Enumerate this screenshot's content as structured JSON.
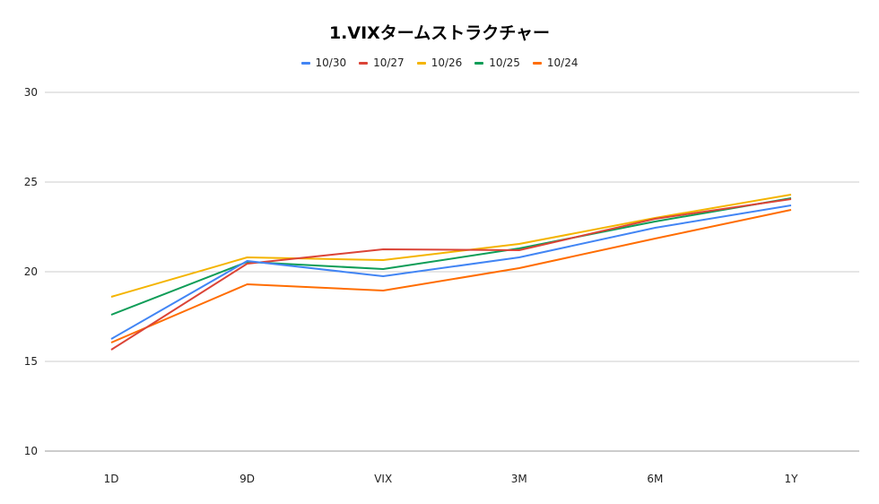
{
  "chart_data": {
    "type": "line",
    "title": "1.VIXタームストラクチャー",
    "categories": [
      "1D",
      "9D",
      "VIX",
      "3M",
      "6M",
      "1Y"
    ],
    "ylim": [
      10,
      30
    ],
    "yticks": [
      10,
      15,
      20,
      25,
      30
    ],
    "grid": true,
    "legend_position": "top",
    "series": [
      {
        "name": "10/30",
        "color": "#4285F4",
        "values": [
          16.25,
          20.6,
          19.75,
          20.8,
          22.45,
          23.7
        ]
      },
      {
        "name": "10/27",
        "color": "#DB4437",
        "values": [
          15.65,
          20.45,
          21.25,
          21.2,
          22.95,
          24.05
        ]
      },
      {
        "name": "10/26",
        "color": "#F4B400",
        "values": [
          18.6,
          20.8,
          20.65,
          21.55,
          23.0,
          24.3
        ]
      },
      {
        "name": "10/25",
        "color": "#0F9D58",
        "values": [
          17.6,
          20.55,
          20.15,
          21.3,
          22.8,
          24.1
        ]
      },
      {
        "name": "10/24",
        "color": "#FF6D01",
        "values": [
          16.05,
          19.3,
          18.95,
          20.2,
          21.85,
          23.45
        ]
      }
    ]
  }
}
